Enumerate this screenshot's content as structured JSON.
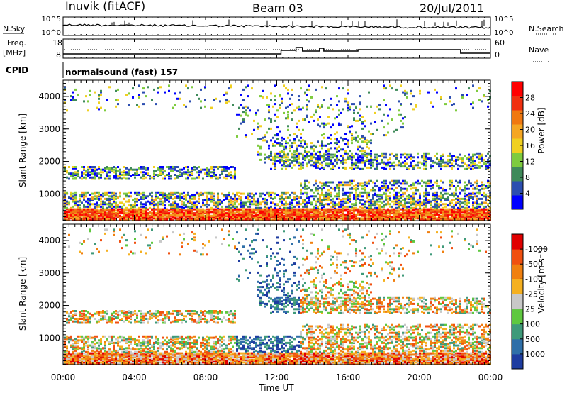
{
  "header": {
    "station": "Inuvik (fitACF)",
    "beam": "Beam 03",
    "date": "20/Jul/2011"
  },
  "noise_panel": {
    "left_label": "N.Sky",
    "right_label": "N.Search",
    "left_ticks": [
      "10^5",
      "10^0"
    ],
    "right_ticks": [
      "10^5",
      "10^0"
    ]
  },
  "freq_panel": {
    "left_label_1": "Freq.",
    "left_label_2": "[MHz]",
    "right_label": "Nave",
    "left_ticks": [
      "18",
      "8"
    ],
    "right_ticks": [
      "60",
      "0"
    ]
  },
  "cpid": {
    "label": "CPID",
    "value": "normalsound (fast) 157"
  },
  "x_axis": {
    "label": "Time UT",
    "ticks": [
      "00:00",
      "04:00",
      "08:00",
      "12:00",
      "16:00",
      "20:00",
      "00:00"
    ]
  },
  "chart_data": [
    {
      "type": "heatmap",
      "title": "",
      "xlabel": "Time UT",
      "ylabel": "Slant Range [km]",
      "x": [
        "00:00",
        "04:00",
        "08:00",
        "12:00",
        "16:00",
        "20:00",
        "00:00"
      ],
      "y_ticks": [
        1000,
        2000,
        3000,
        4000
      ],
      "ylim": [
        180,
        4500
      ],
      "colorbar": {
        "label": "Power [dB]",
        "ticks": [
          "4",
          "8",
          "12",
          "16",
          "20",
          "24",
          "28"
        ],
        "colors": [
          "#0000ff",
          "#2c4eb0",
          "#3f8a5a",
          "#7ecb3e",
          "#f0d020",
          "#f5a623",
          "#f07810",
          "#f03010",
          "#ff0000"
        ]
      }
    },
    {
      "type": "heatmap",
      "title": "",
      "xlabel": "Time UT",
      "ylabel": "Slant Range [km]",
      "x": [
        "00:00",
        "04:00",
        "08:00",
        "12:00",
        "16:00",
        "20:00",
        "00:00"
      ],
      "y_ticks": [
        1000,
        2000,
        3000,
        4000
      ],
      "ylim": [
        180,
        4500
      ],
      "colorbar": {
        "label": "Velocity [m s⁻¹]",
        "ticks": [
          "1000",
          "500",
          "100",
          "25",
          "-25",
          "-100",
          "-500",
          "-1000"
        ],
        "colors": [
          "#1e3ca0",
          "#2f6fa8",
          "#3f9a7a",
          "#5fc840",
          "#c8c8c8",
          "#f5b020",
          "#f08010",
          "#f05010",
          "#e00000"
        ]
      }
    }
  ]
}
